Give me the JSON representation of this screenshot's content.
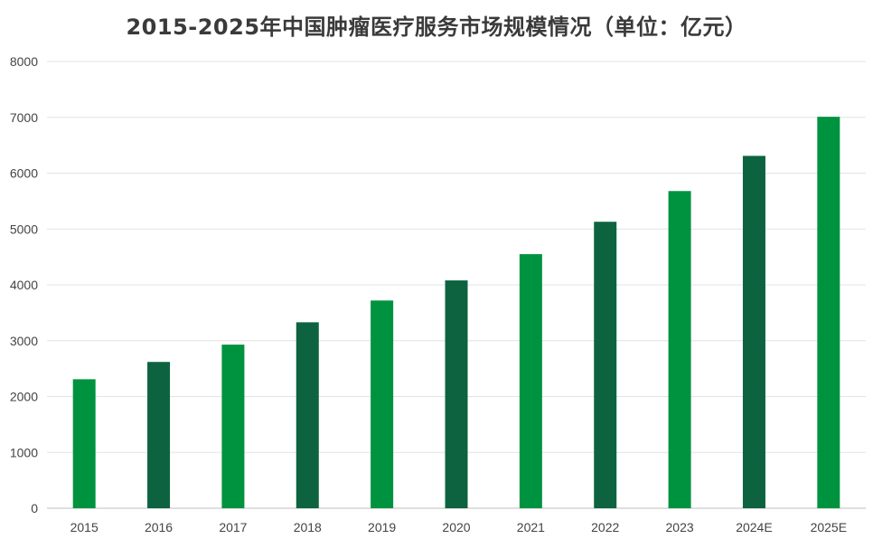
{
  "chart_data": {
    "type": "bar",
    "title": "2015-2025年中国肿瘤医疗服务市场规模情况（单位：亿元）",
    "categories": [
      "2015",
      "2016",
      "2017",
      "2018",
      "2019",
      "2020",
      "2021",
      "2022",
      "2023",
      "2024E",
      "2025E"
    ],
    "values": [
      2310,
      2620,
      2930,
      3330,
      3720,
      4080,
      4550,
      5130,
      5680,
      6310,
      7010
    ],
    "ylim": [
      0,
      8000
    ],
    "yticks": [
      0,
      1000,
      2000,
      3000,
      4000,
      5000,
      6000,
      7000,
      8000
    ],
    "grid": true,
    "legend": "none",
    "bar_colors": [
      "#00933f",
      "#0d6340",
      "#00933f",
      "#0d6340",
      "#00933f",
      "#0d6340",
      "#00933f",
      "#0d6340",
      "#00933f",
      "#0d6340",
      "#00933f"
    ]
  }
}
